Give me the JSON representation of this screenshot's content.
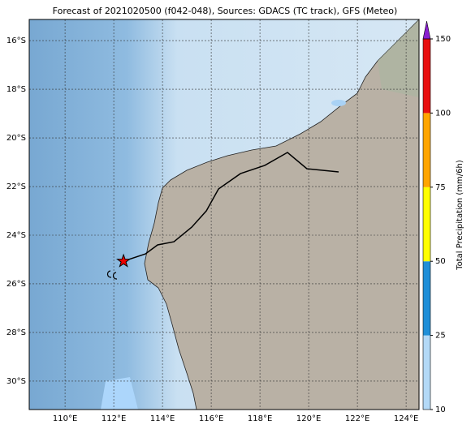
{
  "title": "Forecast of 2021020500 (f042-048), Sources: GDACS (TC track), GFS (Meteo)",
  "map": {
    "lon_range": [
      108.53,
      124.53
    ],
    "lat_range": [
      -31.17,
      -15.13
    ],
    "lon_ticks": [
      {
        "value": 110,
        "label": "110°E"
      },
      {
        "value": 112,
        "label": "112°E"
      },
      {
        "value": 114,
        "label": "114°E"
      },
      {
        "value": 116,
        "label": "116°E"
      },
      {
        "value": 118,
        "label": "118°E"
      },
      {
        "value": 120,
        "label": "120°E"
      },
      {
        "value": 122,
        "label": "122°E"
      },
      {
        "value": 124,
        "label": "124°E"
      }
    ],
    "lat_ticks": [
      {
        "value": -16,
        "label": "16°S"
      },
      {
        "value": -18,
        "label": "18°S"
      },
      {
        "value": -20,
        "label": "20°S"
      },
      {
        "value": -22,
        "label": "22°S"
      },
      {
        "value": -24,
        "label": "24°S"
      },
      {
        "value": -26,
        "label": "26°S"
      },
      {
        "value": -28,
        "label": "28°S"
      },
      {
        "value": -30,
        "label": "30°S"
      }
    ]
  },
  "track": {
    "lon": [
      112.4,
      113.3,
      113.8,
      114.47,
      115.2,
      115.8,
      116.3,
      117.2,
      118.2,
      119.13,
      119.93,
      121.23
    ],
    "lat": [
      -25.07,
      -24.77,
      -24.4,
      -24.27,
      -23.67,
      -23.0,
      -22.1,
      -21.47,
      -21.13,
      -20.6,
      -21.27,
      -21.4
    ]
  },
  "colorbar": {
    "label": "Total Precipitation (mm/6h)",
    "ticks": [
      10,
      25,
      50,
      75,
      100,
      150
    ],
    "colors": [
      "#b3d9f7",
      "#1f8fd8",
      "#ffff00",
      "#ffa500",
      "#e81010"
    ],
    "extend_color": "#8a1fd0"
  }
}
